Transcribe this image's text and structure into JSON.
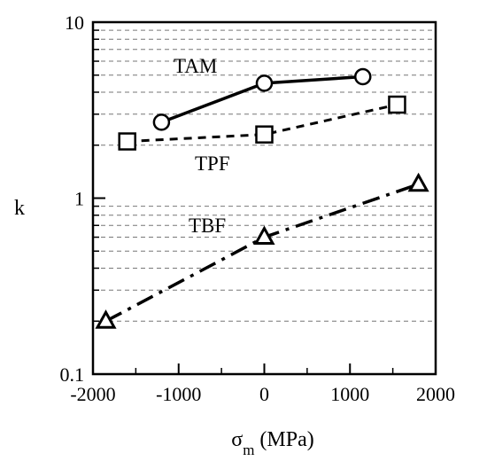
{
  "chart_data": {
    "type": "line",
    "title": "",
    "xlabel": "σm (MPa)",
    "xlabel_main": "σ",
    "xlabel_sub": "m",
    "xlabel_rest": " (MPa)",
    "ylabel": "k",
    "xlim": [
      -2000,
      2000
    ],
    "ylim": [
      0.1,
      10
    ],
    "yscale": "log",
    "x_ticks": [
      -2000,
      -1000,
      0,
      1000,
      2000
    ],
    "x_tick_labels": [
      "-2000",
      "-1000",
      "0",
      "1000",
      "2000"
    ],
    "y_ticks": [
      0.1,
      1,
      10
    ],
    "y_tick_labels": [
      "0.1",
      "1",
      "10"
    ],
    "grid": "horizontal dashed at minor log ticks",
    "legend": "none (series labelled directly on plot)",
    "series": [
      {
        "name": "TAM",
        "marker": "circle",
        "line_style": "solid",
        "points": [
          {
            "x": -1200,
            "y": 2.7
          },
          {
            "x": 0,
            "y": 4.5
          },
          {
            "x": 1150,
            "y": 4.9
          }
        ]
      },
      {
        "name": "TPF",
        "marker": "square",
        "line_style": "dashed",
        "points": [
          {
            "x": -1600,
            "y": 2.1
          },
          {
            "x": 0,
            "y": 2.3
          },
          {
            "x": 1550,
            "y": 3.4
          }
        ]
      },
      {
        "name": "TBF",
        "marker": "triangle",
        "line_style": "dash-dot",
        "points": [
          {
            "x": -1850,
            "y": 0.2
          },
          {
            "x": 0,
            "y": 0.6
          },
          {
            "x": 1800,
            "y": 1.2
          }
        ]
      }
    ]
  }
}
